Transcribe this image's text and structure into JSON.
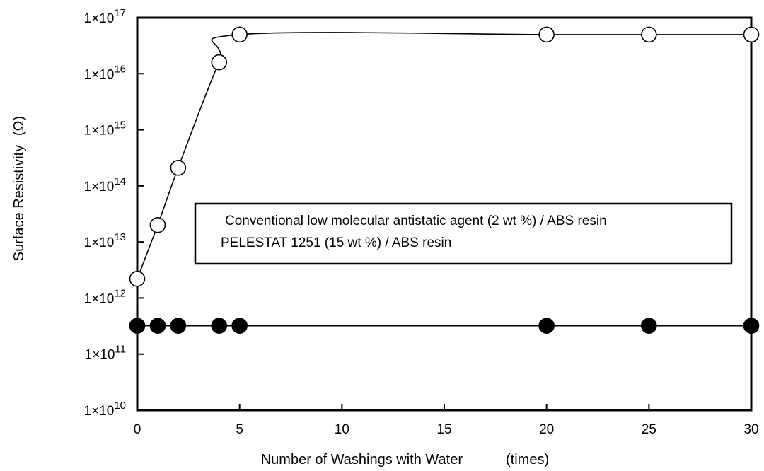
{
  "chart_data": {
    "type": "line",
    "xlabel": "Number of Washings with Water",
    "xlabel_unit": "(times)",
    "ylabel": "Surface Resistivity",
    "ylabel_unit": "(Ω)",
    "xlim": [
      0,
      30
    ],
    "ylim": [
      10000000000.0,
      1e+17
    ],
    "y_scale": "log",
    "grid": false,
    "legend_position": "center-right",
    "x_ticks": [
      "0",
      "5",
      "10",
      "15",
      "20",
      "25",
      "30"
    ],
    "y_ticks": [
      {
        "base": "1×10",
        "exp": "10"
      },
      {
        "base": "1×10",
        "exp": "11"
      },
      {
        "base": "1×10",
        "exp": "12"
      },
      {
        "base": "1×10",
        "exp": "13"
      },
      {
        "base": "1×10",
        "exp": "14"
      },
      {
        "base": "1×10",
        "exp": "15"
      },
      {
        "base": "1×10",
        "exp": "16"
      },
      {
        "base": "1×10",
        "exp": "17"
      }
    ],
    "series": [
      {
        "name": "Conventional low molecular antistatic agent (2 wt %) / ABS resin",
        "marker": "open-circle",
        "x": [
          0,
          1,
          2,
          4,
          5,
          20,
          25,
          30
        ],
        "y": [
          2200000000000.0,
          20000000000000.0,
          210000000000000.0,
          1.6e+16,
          5e+16,
          5e+16,
          5e+16,
          5e+16
        ]
      },
      {
        "name": "PELESTAT 1251 (15 wt %) / ABS resin",
        "marker": "filled-circle",
        "x": [
          0,
          1,
          2,
          4,
          5,
          20,
          25,
          30
        ],
        "y": [
          320000000000.0,
          320000000000.0,
          320000000000.0,
          320000000000.0,
          320000000000.0,
          320000000000.0,
          320000000000.0,
          320000000000.0
        ]
      }
    ],
    "colors": {
      "line": "#000000",
      "open_fill": "#ffffff",
      "filled_fill": "#000000"
    }
  }
}
